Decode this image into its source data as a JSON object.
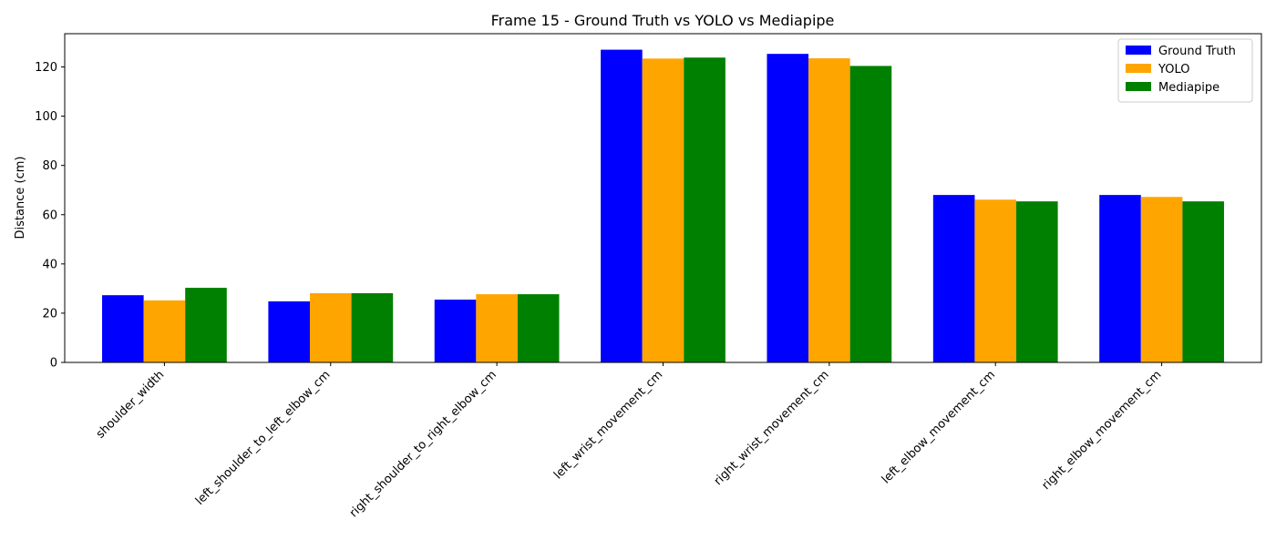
{
  "chart_data": {
    "type": "bar",
    "title": "Frame 15 - Ground Truth vs YOLO vs Mediapipe",
    "xlabel": "",
    "ylabel": "Distance (cm)",
    "ylim": [
      0,
      133.5
    ],
    "yticks": [
      0,
      20,
      40,
      60,
      80,
      100,
      120
    ],
    "grid": false,
    "legend_position": "top-right",
    "categories": [
      "shoulder_width",
      "left_shoulder_to_left_elbow_cm",
      "right_shoulder_to_right_elbow_cm",
      "left_wrist_movement_cm",
      "right_wrist_movement_cm",
      "left_elbow_movement_cm",
      "right_elbow_movement_cm"
    ],
    "series": [
      {
        "name": "Ground Truth",
        "color": "#0000ff",
        "values": [
          27.3,
          24.8,
          25.5,
          127.0,
          125.3,
          68.0,
          68.0
        ]
      },
      {
        "name": "YOLO",
        "color": "#ffa500",
        "values": [
          25.2,
          28.1,
          27.7,
          123.4,
          123.5,
          66.1,
          67.2
        ]
      },
      {
        "name": "Mediapipe",
        "color": "#008000",
        "values": [
          30.3,
          28.1,
          27.7,
          123.8,
          120.4,
          65.4,
          65.4
        ]
      }
    ]
  }
}
